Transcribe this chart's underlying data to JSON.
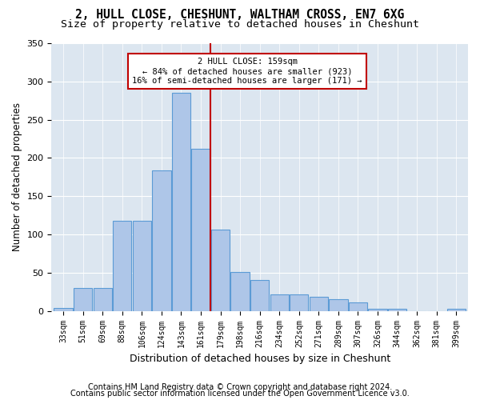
{
  "title1": "2, HULL CLOSE, CHESHUNT, WALTHAM CROSS, EN7 6XG",
  "title2": "Size of property relative to detached houses in Cheshunt",
  "xlabel": "Distribution of detached houses by size in Cheshunt",
  "ylabel": "Number of detached properties",
  "footnote1": "Contains HM Land Registry data © Crown copyright and database right 2024.",
  "footnote2": "Contains public sector information licensed under the Open Government Licence v3.0.",
  "categories": [
    "33sqm",
    "51sqm",
    "69sqm",
    "88sqm",
    "106sqm",
    "124sqm",
    "143sqm",
    "161sqm",
    "179sqm",
    "198sqm",
    "216sqm",
    "234sqm",
    "252sqm",
    "271sqm",
    "289sqm",
    "307sqm",
    "326sqm",
    "344sqm",
    "362sqm",
    "381sqm",
    "399sqm"
  ],
  "bar_heights": [
    4,
    30,
    30,
    118,
    118,
    184,
    285,
    212,
    106,
    51,
    40,
    22,
    22,
    18,
    15,
    11,
    3,
    3,
    0,
    0,
    3
  ],
  "bar_color": "#aec6e8",
  "bar_edge_color": "#5b9bd5",
  "vline_pos": 7.5,
  "vline_color": "#c00000",
  "annotation_text": "2 HULL CLOSE: 159sqm\n← 84% of detached houses are smaller (923)\n16% of semi-detached houses are larger (171) →",
  "annotation_box_color": "#c00000",
  "bg_color": "#dce6f0",
  "ylim": [
    0,
    350
  ],
  "yticks": [
    0,
    50,
    100,
    150,
    200,
    250,
    300,
    350
  ],
  "title1_fontsize": 10.5,
  "title2_fontsize": 9.5,
  "xlabel_fontsize": 9,
  "ylabel_fontsize": 8.5,
  "footnote_fontsize": 7
}
